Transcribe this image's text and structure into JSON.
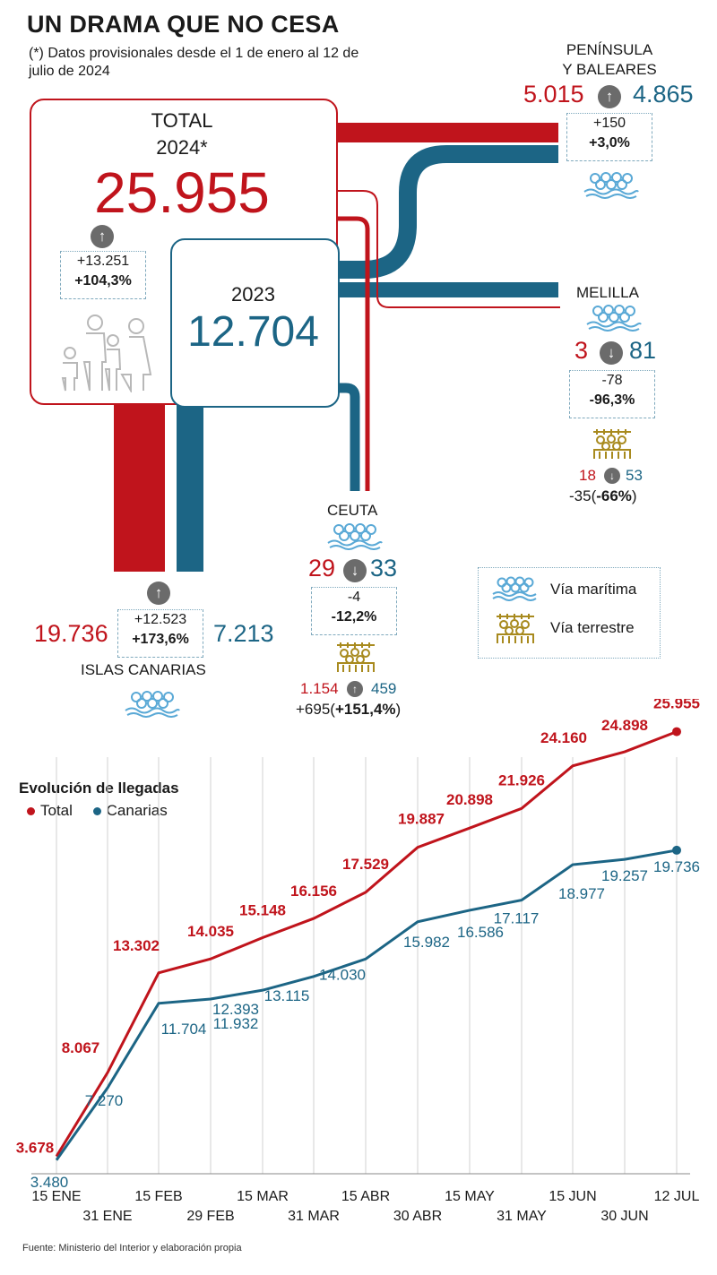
{
  "title": "UN DRAMA QUE NO CESA",
  "subtitle": "(*) Datos provisionales desde el 1 de enero al 12 de julio de 2024",
  "total": {
    "label": "TOTAL",
    "year_2024_label": "2024*",
    "value_2024": "25.955",
    "year_2023_label": "2023",
    "value_2023": "12.704",
    "diff": "+13.251",
    "pct": "+104,3%",
    "trend_icon": "arrow-up-icon"
  },
  "peninsula": {
    "name_line1": "PENÍNSULA",
    "name_line2": "Y BALEARES",
    "value_2024": "5.015",
    "value_2023": "4.865",
    "diff": "+150",
    "pct": "+3,0%",
    "trend_icon": "arrow-up-icon"
  },
  "melilla": {
    "name": "MELILLA",
    "value_2024": "3",
    "value_2023": "81",
    "diff": "-78",
    "pct": "-96,3%",
    "land_2024": "18",
    "land_2023": "53",
    "land_diff": "-35(",
    "land_pct": "-66%",
    "land_close": ")",
    "trend_icon": "arrow-down-icon"
  },
  "ceuta": {
    "name": "CEUTA",
    "value_2024": "29",
    "value_2023": "33",
    "diff": "-4",
    "pct": "-12,2%",
    "land_2024": "1.154",
    "land_2023": "459",
    "land_diff": "+695(",
    "land_pct": "+151,4%",
    "land_close": ")",
    "trend_icon": "arrow-down-icon"
  },
  "canarias": {
    "name": "ISLAS CANARIAS",
    "value_2024": "19.736",
    "value_2023": "7.213",
    "diff": "+12.523",
    "pct": "+173,6%",
    "trend_icon": "arrow-up-icon"
  },
  "legend_routes": {
    "maritime": "Vía marítima",
    "land": "Vía terrestre"
  },
  "colors": {
    "red_2024": "#c0141c",
    "blue_2023": "#1c6585",
    "maritime_icon": "#5aa9d6",
    "land_icon": "#a88a1e",
    "circle_grey": "#6b6b6b"
  },
  "chart_title": "Evolución de llegadas",
  "source": "Fuente: Ministerio del Interior y elaboración propia",
  "chart_data": {
    "type": "line",
    "title": "Evolución de llegadas",
    "x": [
      "15 ENE",
      "31 ENE",
      "15 FEB",
      "29 FEB",
      "15 MAR",
      "31 MAR",
      "15 ABR",
      "30 ABR",
      "15 MAY",
      "31 MAY",
      "15 JUN",
      "30 JUN",
      "12 JUL"
    ],
    "series": [
      {
        "name": "Total",
        "color": "#c0141c",
        "values": [
          3678,
          8067,
          13302,
          14035,
          15148,
          16156,
          17529,
          19887,
          20898,
          21926,
          24160,
          24898,
          25955
        ],
        "labels": [
          "3.678",
          "8.067",
          "13.302",
          "14.035",
          "15.148",
          "16.156",
          "17.529",
          "19.887",
          "20.898",
          "21.926",
          "24.160",
          "24.898",
          "25.955"
        ]
      },
      {
        "name": "Canarias",
        "color": "#1c6585",
        "values": [
          3480,
          7270,
          11704,
          11932,
          12393,
          13115,
          14030,
          15982,
          16586,
          17117,
          18977,
          19257,
          19736
        ],
        "labels": [
          "3.480",
          "7.270",
          "11.704",
          "11.932",
          "12.393",
          "13.115",
          "14.030",
          "15.982",
          "16.586",
          "17.117",
          "18.977",
          "19.257",
          "19.736"
        ]
      }
    ],
    "ylim": [
      3000,
      26500
    ],
    "grid": "vertical",
    "legend": "top-left"
  }
}
